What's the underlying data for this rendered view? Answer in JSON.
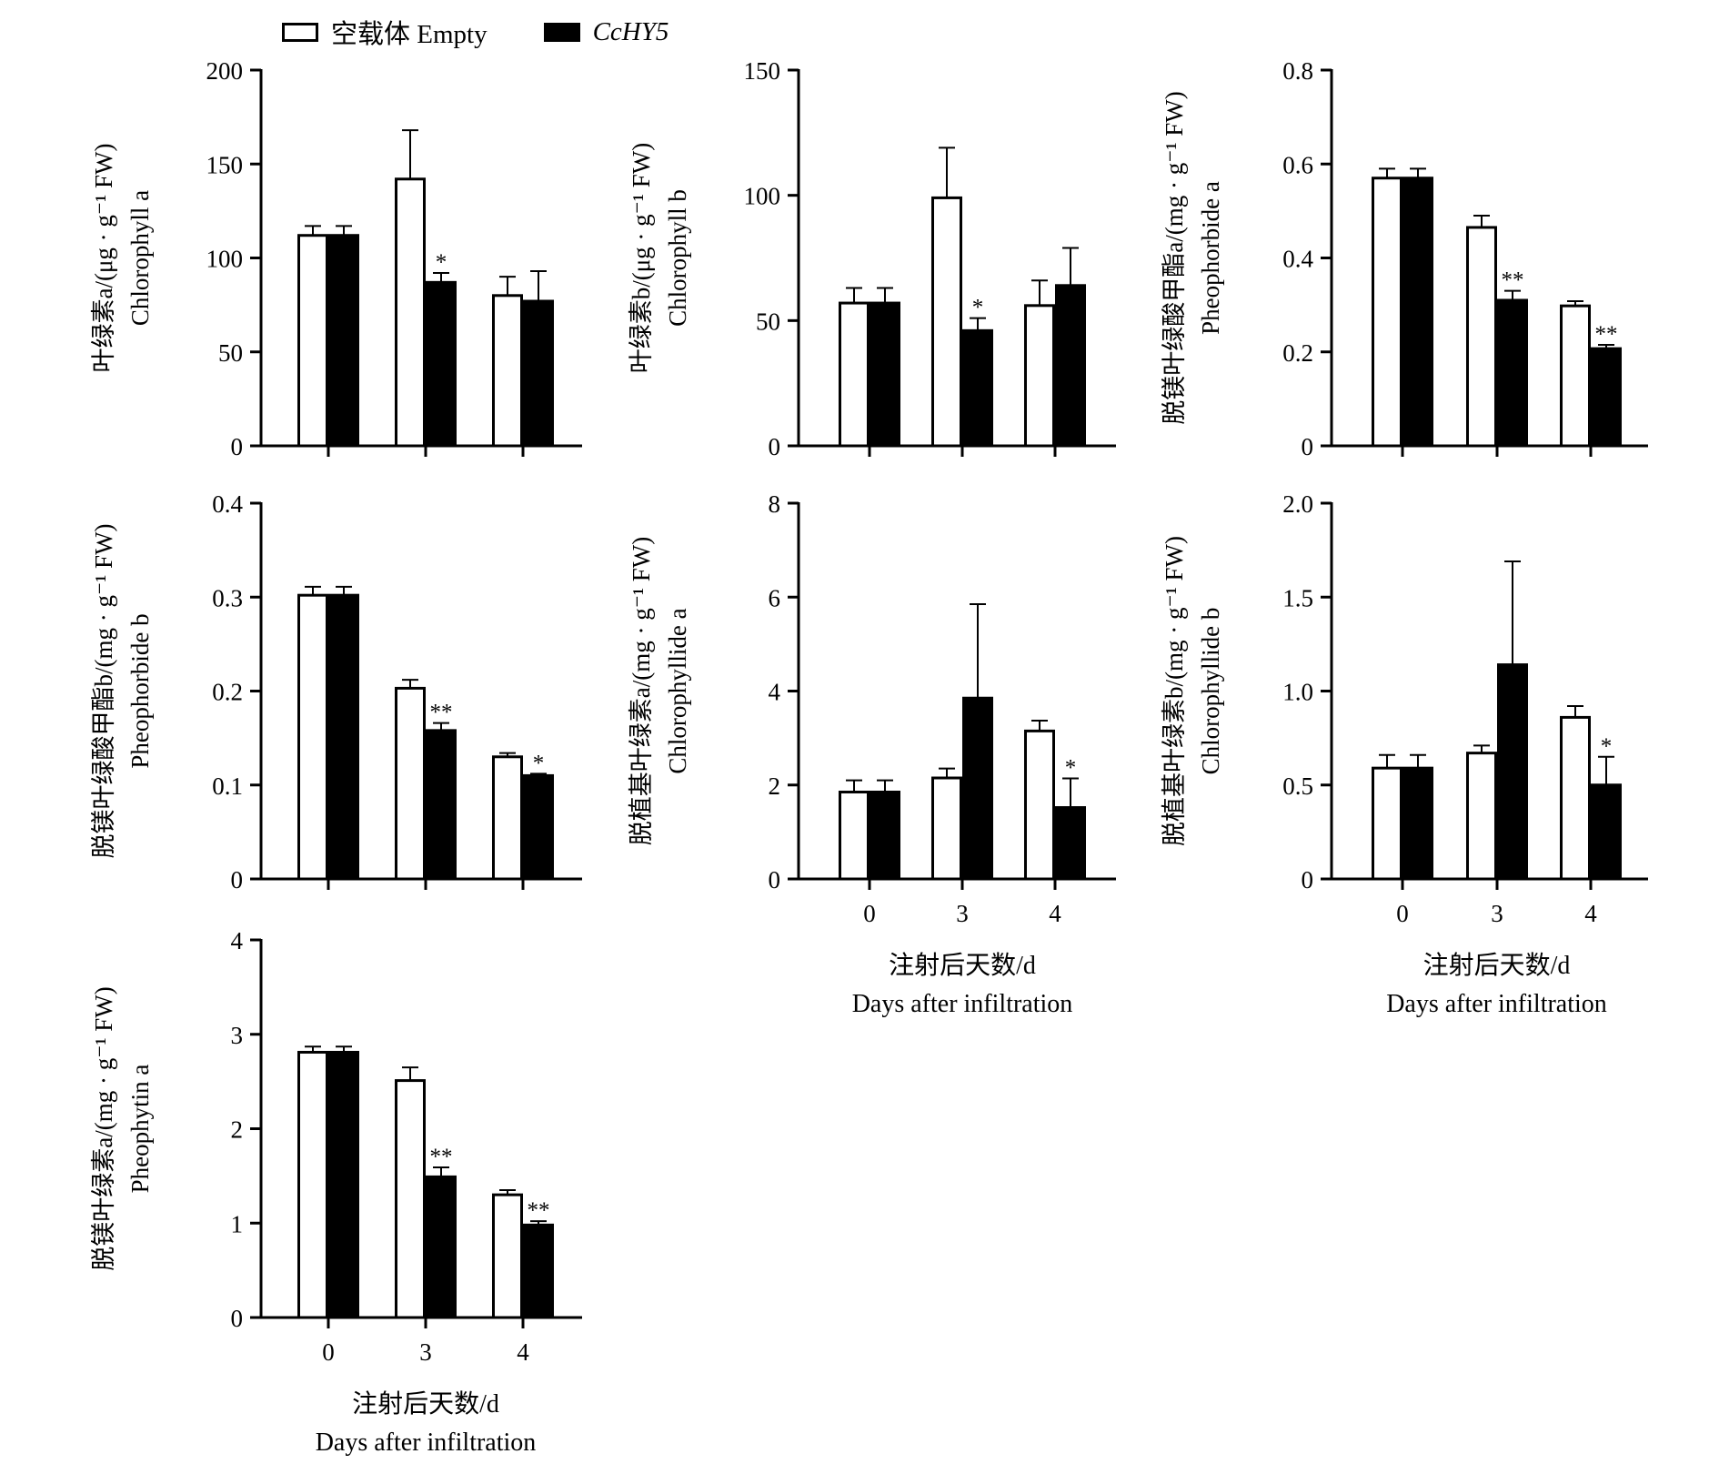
{
  "legend": {
    "empty_label": "空载体 Empty",
    "cchy5_label": "CcHY5",
    "empty_color": "#ffffff",
    "cchy5_color": "#000000"
  },
  "chart_data": [
    {
      "type": "bar",
      "ylabel_cn": "叶绿素a/(μg · g⁻¹ FW)",
      "ylabel_en": "Chlorophyll a",
      "ylim": [
        0,
        200
      ],
      "yticks": [
        "0",
        "50",
        "100",
        "150",
        "200"
      ],
      "show_xticklabels": false,
      "categories": [
        "0",
        "3",
        "4"
      ],
      "series": [
        {
          "name": "空载体 Empty",
          "values": [
            112,
            142,
            80
          ],
          "errors": [
            5,
            26,
            10
          ]
        },
        {
          "name": "CcHY5",
          "values": [
            112,
            87,
            77
          ],
          "errors": [
            5,
            5,
            16
          ]
        }
      ],
      "annotations": [
        "",
        "*",
        ""
      ]
    },
    {
      "type": "bar",
      "ylabel_cn": "叶绿素b/(μg · g⁻¹ FW)",
      "ylabel_en": "Chlorophyll b",
      "ylim": [
        0,
        150
      ],
      "yticks": [
        "0",
        "50",
        "100",
        "150"
      ],
      "show_xticklabels": false,
      "categories": [
        "0",
        "3",
        "4"
      ],
      "series": [
        {
          "name": "空载体 Empty",
          "values": [
            57,
            99,
            56
          ],
          "errors": [
            6,
            20,
            10
          ]
        },
        {
          "name": "CcHY5",
          "values": [
            57,
            46,
            64
          ],
          "errors": [
            6,
            5,
            15
          ]
        }
      ],
      "annotations": [
        "",
        "*",
        ""
      ]
    },
    {
      "type": "bar",
      "ylabel_cn": "脱镁叶绿酸甲酯a/(mg · g⁻¹ FW)",
      "ylabel_en": "Pheophorbide a",
      "ylim": [
        0,
        0.8
      ],
      "yticks": [
        "0",
        "0.2",
        "0.4",
        "0.6",
        "0.8"
      ],
      "show_xticklabels": false,
      "categories": [
        "0",
        "3",
        "4"
      ],
      "series": [
        {
          "name": "空载体 Empty",
          "values": [
            0.57,
            0.465,
            0.298
          ],
          "errors": [
            0.02,
            0.025,
            0.01
          ]
        },
        {
          "name": "CcHY5",
          "values": [
            0.57,
            0.31,
            0.207
          ],
          "errors": [
            0.02,
            0.02,
            0.008
          ]
        }
      ],
      "annotations": [
        "",
        "**",
        "**"
      ]
    },
    {
      "type": "bar",
      "ylabel_cn": "脱镁叶绿酸甲酯b/(mg · g⁻¹ FW)",
      "ylabel_en": "Pheophorbide b",
      "ylim": [
        0,
        0.4
      ],
      "yticks": [
        "0",
        "0.1",
        "0.2",
        "0.3",
        "0.4"
      ],
      "show_xticklabels": false,
      "categories": [
        "0",
        "3",
        "4"
      ],
      "series": [
        {
          "name": "空载体 Empty",
          "values": [
            0.302,
            0.203,
            0.13
          ],
          "errors": [
            0.009,
            0.009,
            0.004
          ]
        },
        {
          "name": "CcHY5",
          "values": [
            0.302,
            0.158,
            0.11
          ],
          "errors": [
            0.009,
            0.008,
            0.002
          ]
        }
      ],
      "annotations": [
        "",
        "**",
        "*"
      ]
    },
    {
      "type": "bar",
      "ylabel_cn": "脱植基叶绿素a/(mg · g⁻¹ FW)",
      "ylabel_en": "Chlorophyllide a",
      "ylim": [
        0,
        8
      ],
      "yticks": [
        "0",
        "2",
        "4",
        "6",
        "8"
      ],
      "show_xticklabels": true,
      "xlabel_cn": "注射后天数/d",
      "xlabel_en": "Days after infiltration",
      "categories": [
        "0",
        "3",
        "4"
      ],
      "series": [
        {
          "name": "空载体 Empty",
          "values": [
            1.85,
            2.15,
            3.15
          ],
          "errors": [
            0.25,
            0.2,
            0.22
          ]
        },
        {
          "name": "CcHY5",
          "values": [
            1.85,
            3.85,
            1.52
          ],
          "errors": [
            0.25,
            2.0,
            0.62
          ]
        }
      ],
      "annotations": [
        "",
        "",
        "*"
      ]
    },
    {
      "type": "bar",
      "ylabel_cn": "脱植基叶绿素b/(mg · g⁻¹ FW)",
      "ylabel_en": "Chlorophyllide b",
      "ylim": [
        0,
        2.0
      ],
      "yticks": [
        "0",
        "0.5",
        "1.0",
        "1.5",
        "2.0"
      ],
      "show_xticklabels": true,
      "xlabel_cn": "注射后天数/d",
      "xlabel_en": "Days after infiltration",
      "categories": [
        "0",
        "3",
        "4"
      ],
      "series": [
        {
          "name": "空载体 Empty",
          "values": [
            0.59,
            0.67,
            0.86
          ],
          "errors": [
            0.07,
            0.04,
            0.06
          ]
        },
        {
          "name": "CcHY5",
          "values": [
            0.59,
            1.14,
            0.5
          ],
          "errors": [
            0.07,
            0.55,
            0.15
          ]
        }
      ],
      "annotations": [
        "",
        "",
        "*"
      ]
    },
    {
      "type": "bar",
      "ylabel_cn": "脱镁叶绿素a/(mg · g⁻¹ FW)",
      "ylabel_en": "Pheophytin a",
      "ylim": [
        0,
        4
      ],
      "yticks": [
        "0",
        "1",
        "2",
        "3",
        "4"
      ],
      "show_xticklabels": true,
      "xlabel_cn": "注射后天数/d",
      "xlabel_en": "Days after infiltration",
      "categories": [
        "0",
        "3",
        "4"
      ],
      "series": [
        {
          "name": "空载体 Empty",
          "values": [
            2.81,
            2.51,
            1.3
          ],
          "errors": [
            0.06,
            0.14,
            0.05
          ]
        },
        {
          "name": "CcHY5",
          "values": [
            2.81,
            1.49,
            0.98
          ],
          "errors": [
            0.06,
            0.1,
            0.04
          ]
        }
      ],
      "annotations": [
        "",
        "**",
        "**"
      ]
    }
  ]
}
